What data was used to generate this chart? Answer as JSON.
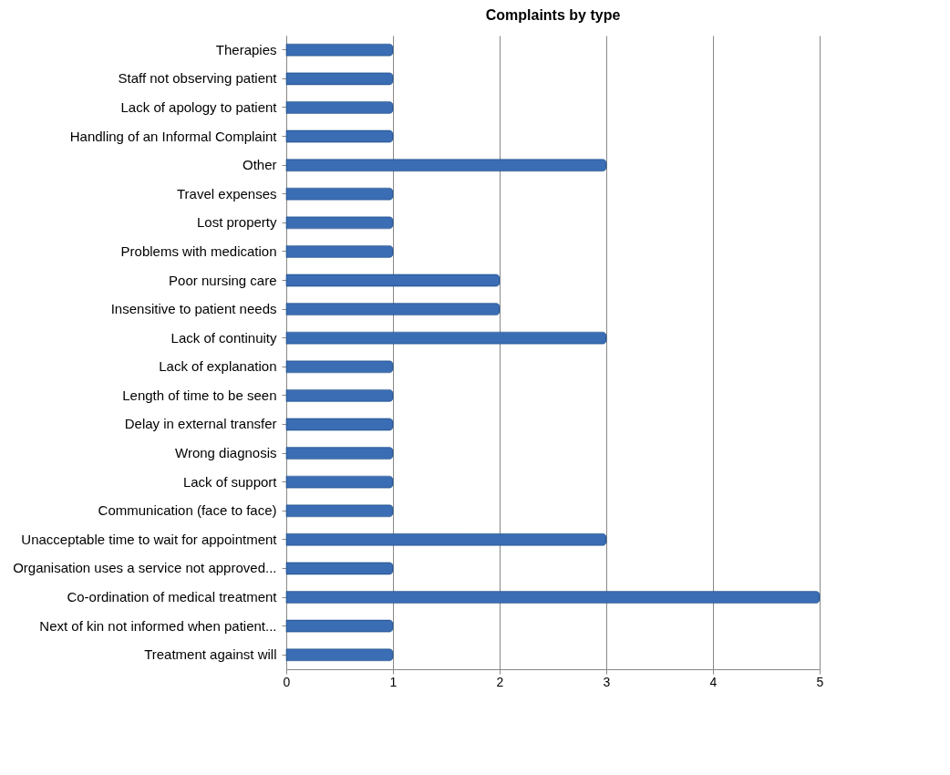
{
  "chart_data": {
    "type": "bar",
    "orientation": "horizontal",
    "title": "Complaints by type",
    "categories": [
      "Therapies",
      "Staff not observing patient",
      "Lack of apology to patient",
      "Handling of an Informal Complaint",
      "Other",
      "Travel expenses",
      "Lost property",
      "Problems with medication",
      "Poor nursing care",
      "Insensitive to patient needs",
      "Lack of continuity",
      "Lack of explanation",
      "Length of time to be seen",
      "Delay in external transfer",
      "Wrong diagnosis",
      "Lack of support",
      "Communication (face to face)",
      "Unacceptable time to wait for appointment",
      "Organisation uses a service not approved...",
      "Co-ordination of medical treatment",
      "Next of kin not informed when patient...",
      "Treatment against will"
    ],
    "values": [
      1,
      1,
      1,
      1,
      3,
      1,
      1,
      1,
      2,
      2,
      3,
      1,
      1,
      1,
      1,
      1,
      1,
      3,
      1,
      5,
      1,
      1
    ],
    "color": "#3a6db3",
    "xlim": [
      0,
      5
    ],
    "xticks": [
      0,
      1,
      2,
      3,
      4,
      5
    ],
    "grid": "x"
  }
}
